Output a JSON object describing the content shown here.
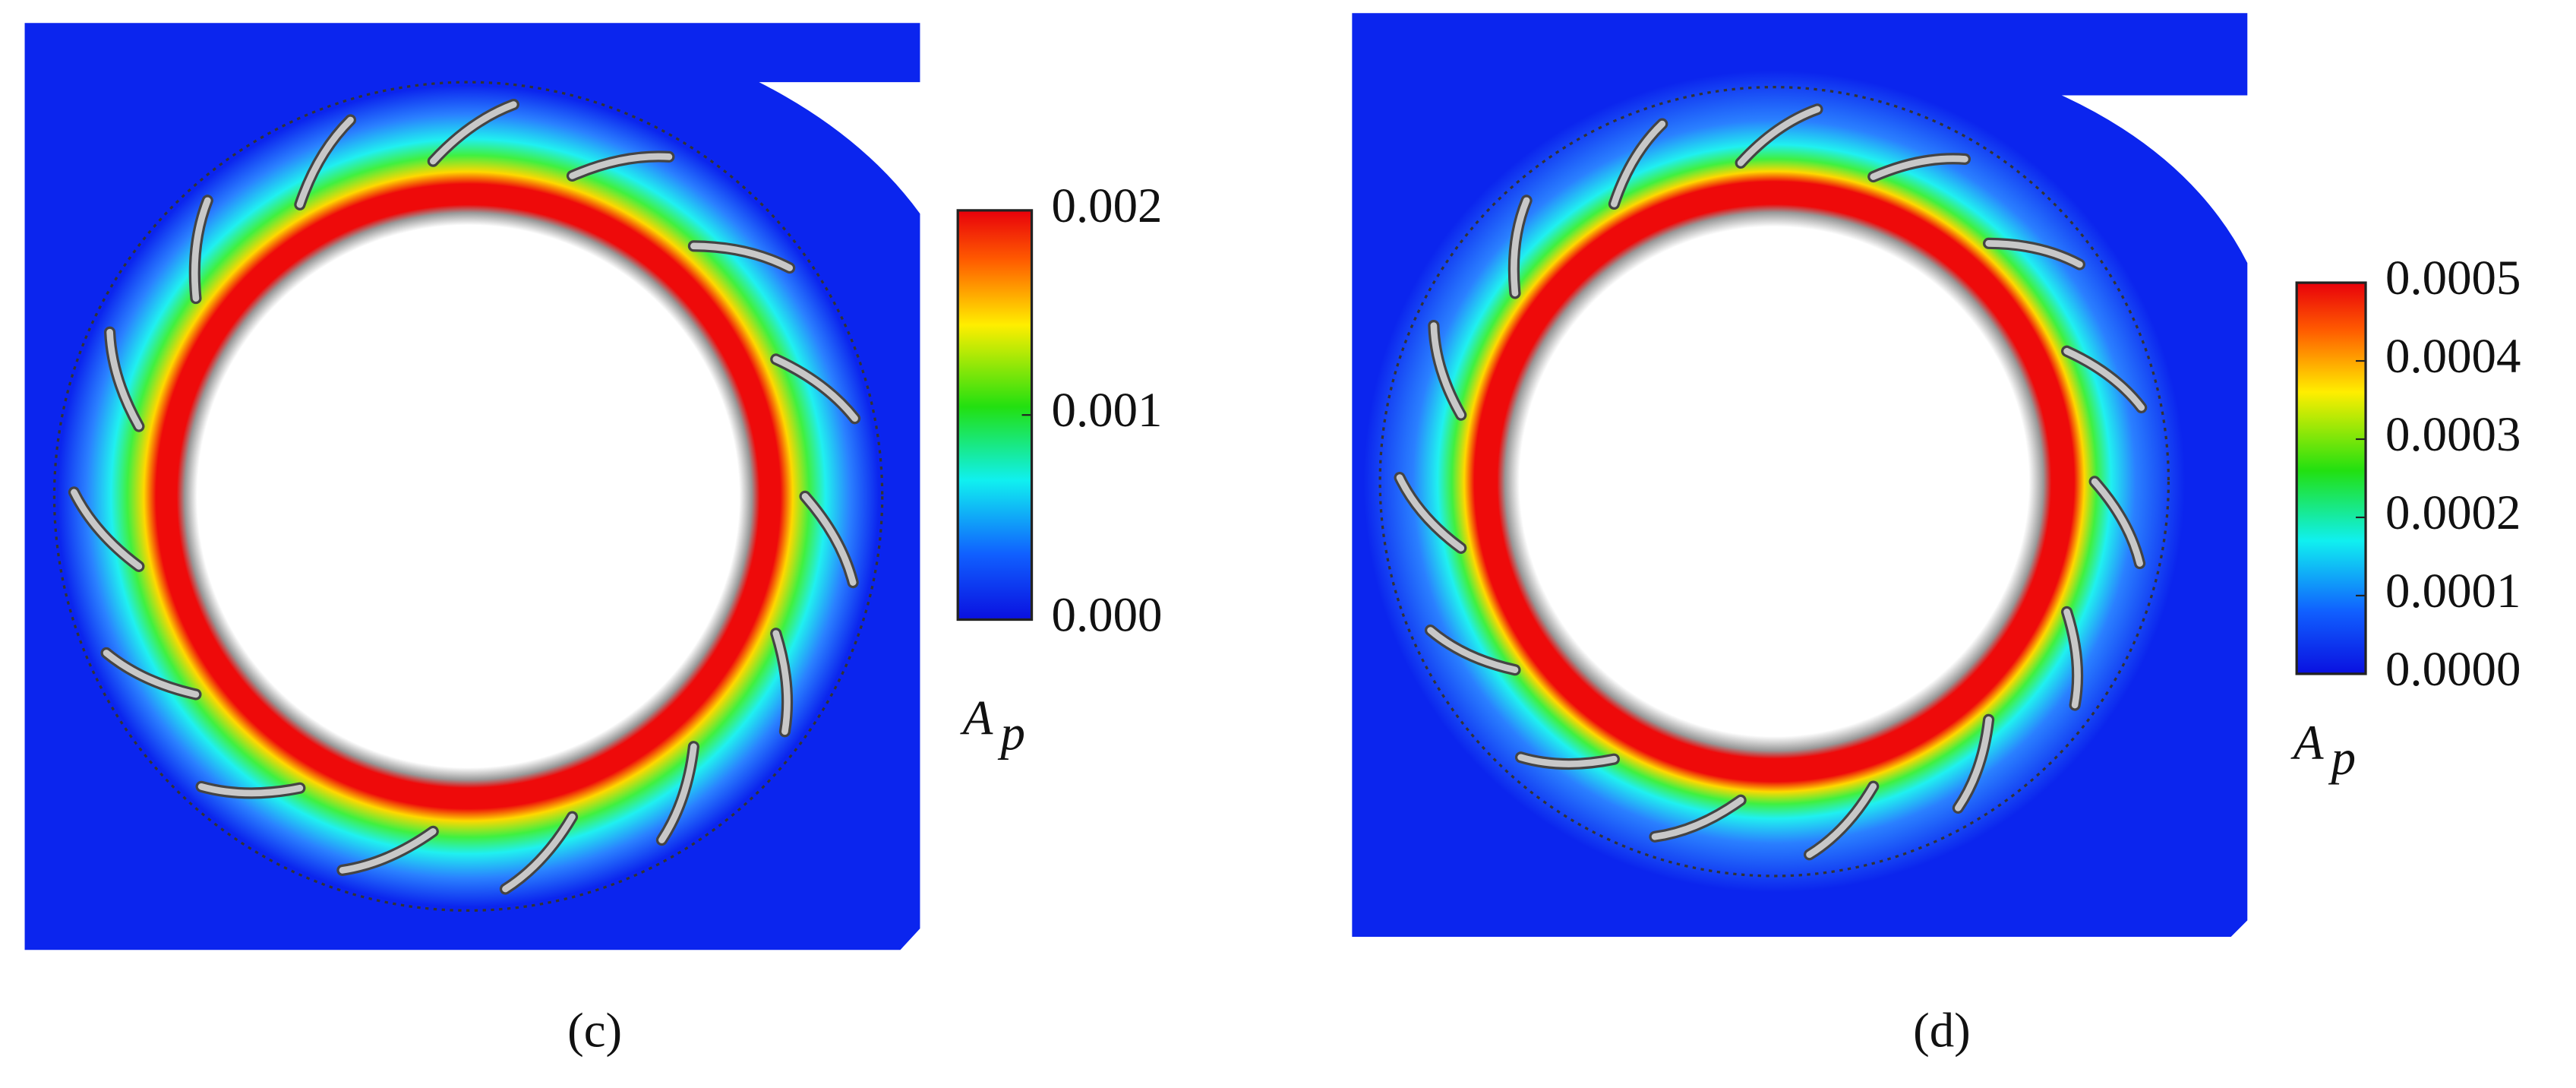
{
  "panels": [
    {
      "label": "(c)",
      "colorbar": {
        "title": {
          "symbol": "A",
          "subscript": "p"
        },
        "range": [
          0,
          0.002
        ],
        "ticks": [
          {
            "value": 0.002,
            "label": "0.002"
          },
          {
            "value": 0.001,
            "label": "0.001"
          },
          {
            "value": 0,
            "label": "0.000"
          }
        ]
      }
    },
    {
      "label": "(d)",
      "colorbar": {
        "title": {
          "symbol": "A",
          "subscript": "p"
        },
        "range": [
          0,
          0.0005
        ],
        "ticks": [
          {
            "value": 0.0005,
            "label": "0.0005"
          },
          {
            "value": 0.0004,
            "label": "0.0004"
          },
          {
            "value": 0.0003,
            "label": "0.0003"
          },
          {
            "value": 0.0002,
            "label": "0.0002"
          },
          {
            "value": 0.0001,
            "label": "0.0001"
          },
          {
            "value": 0,
            "label": "0.0000"
          }
        ]
      }
    }
  ]
}
